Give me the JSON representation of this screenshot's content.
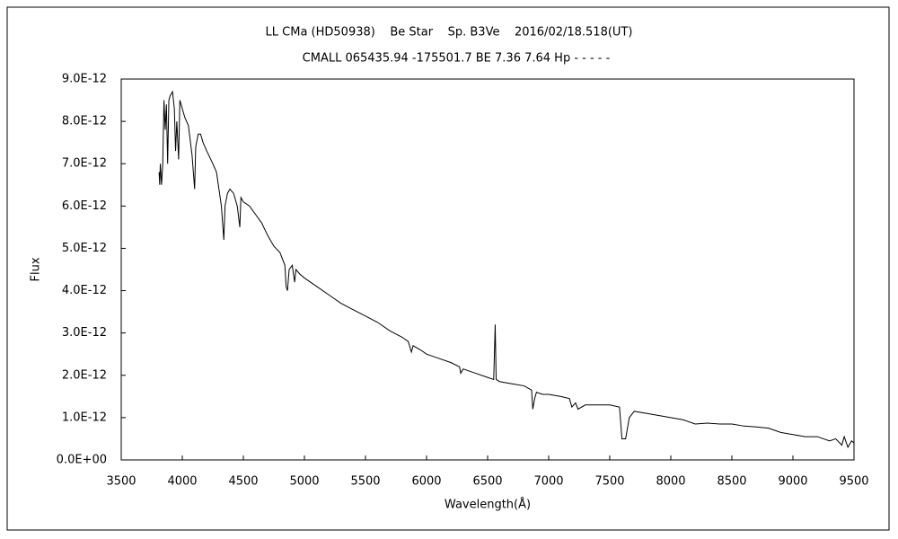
{
  "chart_data": {
    "type": "line",
    "title": "LL CMa (HD50938)    Be Star    Sp. B3Ve    2016/02/18.518(UT)",
    "subtitle": "CMALL 065435.94 -175501.7 BE 7.36 7.64 Hp - - - - -",
    "x_label": "Wavelength(Å)",
    "y_label": "Flux",
    "color": "#000000",
    "xlim": [
      3500,
      9500
    ],
    "xticks": [
      3500,
      4000,
      4500,
      5000,
      5500,
      6000,
      6500,
      7000,
      7500,
      8000,
      8500,
      9000,
      9500
    ],
    "ylim": [
      0,
      9e-12
    ],
    "yticks": [
      {
        "value": 0,
        "label": "0.0E+00"
      },
      {
        "value": 1e-12,
        "label": "1.0E-12"
      },
      {
        "value": 2e-12,
        "label": "2.0E-12"
      },
      {
        "value": 3e-12,
        "label": "3.0E-12"
      },
      {
        "value": 4e-12,
        "label": "4.0E-12"
      },
      {
        "value": 5e-12,
        "label": "5.0E-12"
      },
      {
        "value": 6e-12,
        "label": "6.0E-12"
      },
      {
        "value": 7e-12,
        "label": "7.0E-12"
      },
      {
        "value": 8e-12,
        "label": "8.0E-12"
      },
      {
        "value": 9e-12,
        "label": "9.0E-12"
      }
    ],
    "x": [
      3810,
      3815,
      3820,
      3830,
      3840,
      3850,
      3860,
      3870,
      3880,
      3890,
      3900,
      3920,
      3935,
      3945,
      3955,
      3970,
      3980,
      4000,
      4020,
      4050,
      4080,
      4101,
      4110,
      4130,
      4150,
      4170,
      4200,
      4250,
      4280,
      4300,
      4320,
      4340,
      4350,
      4370,
      4390,
      4420,
      4450,
      4471,
      4480,
      4500,
      4550,
      4600,
      4650,
      4700,
      4750,
      4800,
      4840,
      4850,
      4861,
      4875,
      4900,
      4920,
      4930,
      4960,
      5000,
      5100,
      5200,
      5300,
      5400,
      5500,
      5600,
      5700,
      5800,
      5850,
      5876,
      5890,
      5950,
      6000,
      6100,
      6200,
      6270,
      6280,
      6300,
      6400,
      6500,
      6550,
      6562,
      6570,
      6600,
      6700,
      6800,
      6860,
      6870,
      6885,
      6900,
      6950,
      7000,
      7100,
      7170,
      7190,
      7220,
      7240,
      7300,
      7400,
      7500,
      7580,
      7600,
      7630,
      7660,
      7700,
      7800,
      7900,
      8000,
      8100,
      8200,
      8300,
      8400,
      8500,
      8600,
      8700,
      8800,
      8900,
      9000,
      9100,
      9200,
      9300,
      9350,
      9400,
      9420,
      9450,
      9480,
      9500
    ],
    "values": [
      6.8e-12,
      6.5e-12,
      7e-12,
      6.5e-12,
      7e-12,
      8.5e-12,
      7.8e-12,
      8.4e-12,
      7e-12,
      8.5e-12,
      8.6e-12,
      8.7e-12,
      8.3e-12,
      7.3e-12,
      8e-12,
      7.1e-12,
      8.5e-12,
      8.3e-12,
      8.1e-12,
      7.9e-12,
      7.2e-12,
      6.4e-12,
      7.4e-12,
      7.7e-12,
      7.7e-12,
      7.5e-12,
      7.3e-12,
      7e-12,
      6.8e-12,
      6.4e-12,
      6e-12,
      5.2e-12,
      6e-12,
      6.3e-12,
      6.4e-12,
      6.3e-12,
      6e-12,
      5.5e-12,
      6.2e-12,
      6.1e-12,
      6e-12,
      5.8e-12,
      5.6e-12,
      5.3e-12,
      5.05e-12,
      4.9e-12,
      4.6e-12,
      4.1e-12,
      4e-12,
      4.5e-12,
      4.6e-12,
      4.2e-12,
      4.5e-12,
      4.4e-12,
      4.3e-12,
      4.1e-12,
      3.9e-12,
      3.7e-12,
      3.55e-12,
      3.4e-12,
      3.25e-12,
      3.05e-12,
      2.9e-12,
      2.8e-12,
      2.55e-12,
      2.7e-12,
      2.6e-12,
      2.5e-12,
      2.4e-12,
      2.3e-12,
      2.2e-12,
      2.05e-12,
      2.15e-12,
      2.05e-12,
      1.95e-12,
      1.9e-12,
      3.2e-12,
      1.9e-12,
      1.85e-12,
      1.8e-12,
      1.75e-12,
      1.65e-12,
      1.2e-12,
      1.45e-12,
      1.6e-12,
      1.55e-12,
      1.55e-12,
      1.5e-12,
      1.45e-12,
      1.25e-12,
      1.35e-12,
      1.2e-12,
      1.3e-12,
      1.3e-12,
      1.3e-12,
      1.25e-12,
      5e-13,
      5e-13,
      1e-12,
      1.15e-12,
      1.1e-12,
      1.05e-12,
      1e-12,
      9.5e-13,
      8.5e-13,
      8.7e-13,
      8.5e-13,
      8.5e-13,
      8e-13,
      7.8e-13,
      7.5e-13,
      6.5e-13,
      6e-13,
      5.5e-13,
      5.5e-13,
      4.5e-13,
      5e-13,
      3.5e-13,
      5.5e-13,
      3e-13,
      4.5e-13,
      4e-13
    ]
  }
}
